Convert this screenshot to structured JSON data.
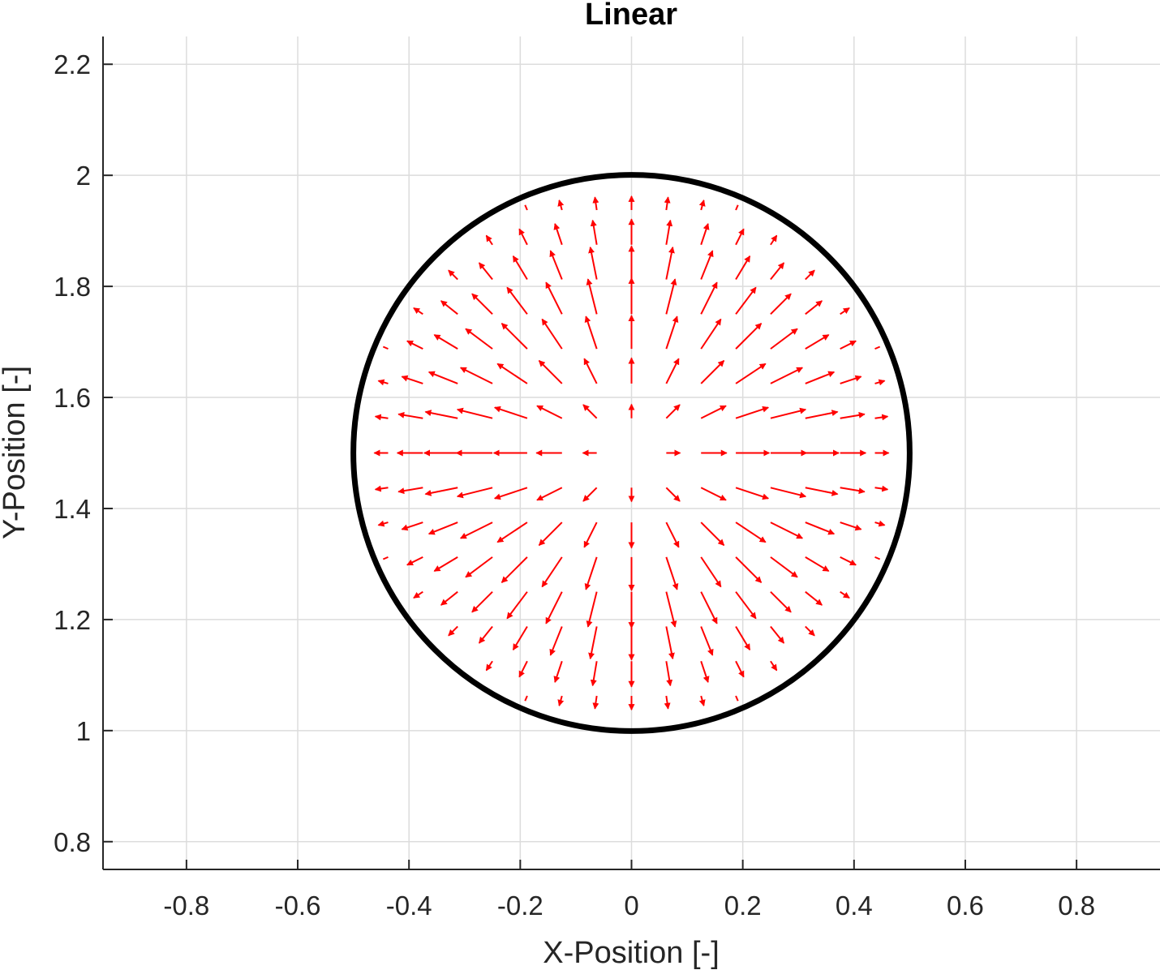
{
  "chart_data": {
    "type": "quiver",
    "title": "Linear",
    "xlabel": "X-Position [-]",
    "ylabel": "Y-Position [-]",
    "xlim": [
      -0.95,
      0.95
    ],
    "ylim": [
      0.75,
      2.25
    ],
    "xticks": [
      -0.8,
      -0.6,
      -0.4,
      -0.2,
      0,
      0.2,
      0.4,
      0.6,
      0.8
    ],
    "xtick_labels": [
      "-0.8",
      "-0.6",
      "-0.4",
      "-0.2",
      "0",
      "0.2",
      "0.4",
      "0.6",
      "0.8"
    ],
    "yticks": [
      0.8,
      1,
      1.2,
      1.4,
      1.6,
      1.8,
      2,
      2.2
    ],
    "ytick_labels": [
      "0.8",
      "1",
      "1.2",
      "1.4",
      "1.6",
      "1.8",
      "2",
      "2.2"
    ],
    "grid": true,
    "boundary_circle": {
      "center": [
        0,
        1.5
      ],
      "radius": 0.5,
      "color": "#000000"
    },
    "vector_field": {
      "color": "#ff0000",
      "field": "radial outward from center, magnitude peaks at mid-radius and vanishes at center and boundary",
      "center": [
        0,
        1.5
      ],
      "grid_spacing": 0.0625,
      "domain_radius": 0.5,
      "hidden_core_radius": 0.06,
      "peak_arrow_length": 0.065
    }
  },
  "colors": {
    "arrow": "#ff0000",
    "circle": "#000000",
    "grid": "#dcdcdc",
    "axis": "#262626"
  }
}
